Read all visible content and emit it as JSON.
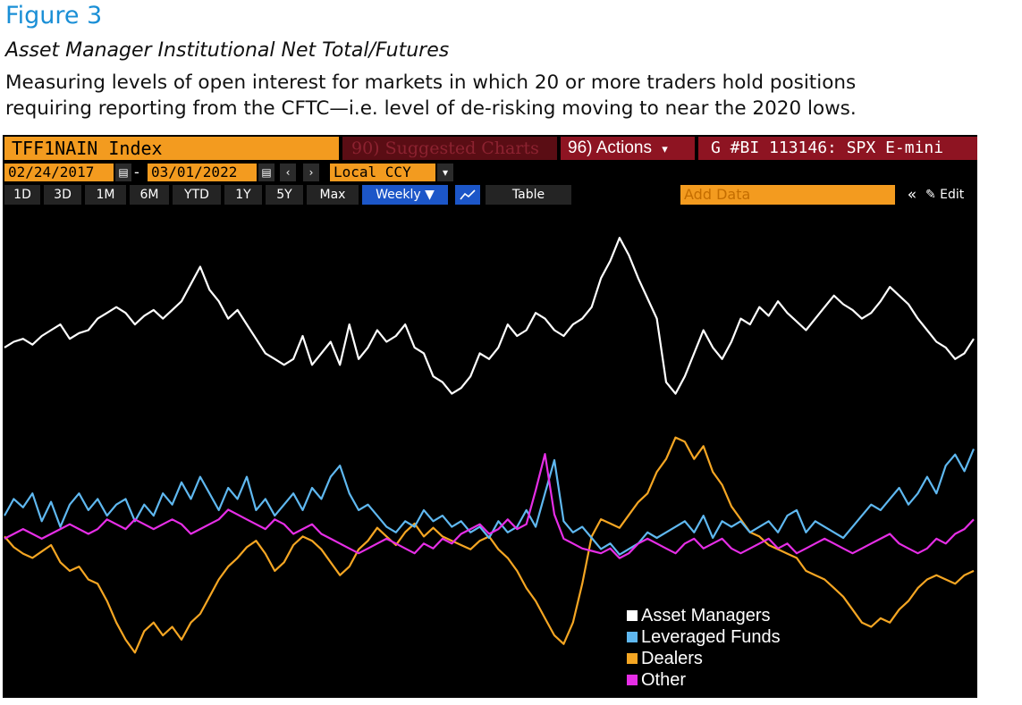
{
  "figure_label": "Figure 3",
  "subtitle": "Asset Manager Institutional Net Total/Futures",
  "description_line1": "Measuring levels of open interest for markets in which 20 or more traders hold positions",
  "description_line2": "requiring reporting from the CFTC—i.e. level of de-risking moving to near the 2020 lows.",
  "terminal": {
    "ticker": "TFF1NAIN Index",
    "suggested": "90) Suggested Charts",
    "actions": "96) Actions",
    "actions_caret": "▾",
    "gcode": "G #BI 113146: SPX E-mini",
    "start_date": "02/24/2017",
    "end_date": "03/01/2022",
    "currency": "Local CCY",
    "periods": [
      "1D",
      "3D",
      "1M",
      "6M",
      "YTD",
      "1Y",
      "5Y",
      "Max"
    ],
    "frequency": "Weekly ▼",
    "table_label": "Table",
    "add_data_placeholder": "Add Data",
    "collapse_label": "«",
    "edit_label": "✎ Edit"
  },
  "colors": {
    "background": "#000000",
    "asset_managers": "#ffffff",
    "leveraged_funds": "#5fb8f0",
    "dealers": "#f5a623",
    "other": "#e62ee6",
    "accent_orange": "#f39b1f",
    "title_blue": "#1a8fd6"
  },
  "chart_data": {
    "type": "line",
    "x_range": [
      "2017-02-24",
      "2022-03-01"
    ],
    "y_scale": "relative (no axis labels shown)",
    "grid": false,
    "legend_position": "bottom-right",
    "series": [
      {
        "name": "Asset Managers",
        "color": "#ffffff",
        "values": [
          82,
          84,
          85,
          83,
          86,
          88,
          90,
          85,
          87,
          88,
          92,
          94,
          96,
          94,
          90,
          93,
          95,
          92,
          95,
          98,
          104,
          110,
          102,
          98,
          92,
          95,
          90,
          85,
          80,
          78,
          76,
          78,
          86,
          76,
          80,
          84,
          76,
          90,
          78,
          82,
          88,
          84,
          86,
          90,
          82,
          80,
          72,
          70,
          66,
          68,
          72,
          80,
          78,
          82,
          90,
          86,
          88,
          94,
          92,
          88,
          86,
          90,
          92,
          96,
          106,
          112,
          120,
          114,
          106,
          99,
          92,
          70,
          66,
          72,
          80,
          88,
          82,
          78,
          84,
          92,
          90,
          96,
          93,
          98,
          94,
          91,
          88,
          92,
          96,
          100,
          97,
          95,
          92,
          94,
          98,
          103,
          100,
          97,
          92,
          88,
          84,
          82,
          78,
          80,
          85
        ]
      },
      {
        "name": "Leveraged Funds",
        "color": "#5fb8f0",
        "values": [
          22,
          28,
          25,
          30,
          20,
          27,
          18,
          26,
          30,
          24,
          28,
          22,
          26,
          28,
          20,
          26,
          22,
          30,
          26,
          34,
          28,
          36,
          30,
          24,
          32,
          28,
          36,
          24,
          28,
          22,
          26,
          30,
          24,
          32,
          28,
          36,
          40,
          30,
          24,
          26,
          22,
          18,
          16,
          20,
          18,
          24,
          20,
          22,
          18,
          20,
          16,
          18,
          14,
          20,
          16,
          18,
          24,
          18,
          30,
          42,
          20,
          16,
          18,
          14,
          10,
          12,
          8,
          10,
          12,
          16,
          14,
          16,
          18,
          20,
          16,
          22,
          14,
          20,
          18,
          20,
          16,
          18,
          20,
          16,
          22,
          24,
          16,
          20,
          18,
          16,
          14,
          18,
          22,
          26,
          24,
          28,
          32,
          26,
          30,
          36,
          30,
          40,
          44,
          38,
          46
        ]
      },
      {
        "name": "Dealers",
        "color": "#f5a623",
        "values": [
          10,
          5,
          2,
          0,
          3,
          6,
          -2,
          -6,
          -4,
          -10,
          -12,
          -20,
          -30,
          -38,
          -44,
          -34,
          -30,
          -36,
          -32,
          -38,
          -30,
          -26,
          -18,
          -10,
          -4,
          0,
          5,
          8,
          2,
          -6,
          -2,
          6,
          10,
          8,
          4,
          -2,
          -8,
          -4,
          4,
          8,
          14,
          10,
          6,
          12,
          16,
          10,
          14,
          10,
          8,
          6,
          4,
          8,
          10,
          4,
          0,
          -6,
          -14,
          -20,
          -28,
          -36,
          -40,
          -30,
          -12,
          10,
          18,
          16,
          14,
          20,
          26,
          30,
          40,
          46,
          56,
          54,
          46,
          52,
          40,
          34,
          24,
          18,
          12,
          10,
          6,
          4,
          2,
          0,
          -6,
          -8,
          -10,
          -14,
          -18,
          -24,
          -30,
          -32,
          -28,
          -30,
          -24,
          -20,
          -14,
          -10,
          -8,
          -10,
          -12,
          -8,
          -6
        ]
      },
      {
        "name": "Other",
        "color": "#e62ee6",
        "values": [
          20,
          22,
          24,
          22,
          20,
          22,
          24,
          26,
          24,
          22,
          24,
          28,
          26,
          24,
          28,
          26,
          24,
          26,
          28,
          26,
          22,
          24,
          26,
          28,
          32,
          30,
          28,
          26,
          24,
          28,
          26,
          22,
          24,
          26,
          22,
          20,
          18,
          16,
          14,
          16,
          18,
          20,
          18,
          16,
          14,
          18,
          16,
          20,
          18,
          22,
          24,
          26,
          22,
          24,
          28,
          24,
          26,
          40,
          55,
          30,
          20,
          18,
          16,
          15,
          14,
          16,
          12,
          14,
          18,
          20,
          18,
          16,
          14,
          18,
          20,
          16,
          18,
          20,
          16,
          14,
          16,
          18,
          20,
          16,
          18,
          14,
          16,
          18,
          20,
          18,
          16,
          14,
          16,
          18,
          20,
          22,
          18,
          16,
          14,
          16,
          20,
          18,
          22,
          24,
          28
        ]
      }
    ]
  },
  "legend": {
    "items": [
      "Asset Managers",
      "Leveraged Funds",
      "Dealers",
      "Other"
    ]
  }
}
